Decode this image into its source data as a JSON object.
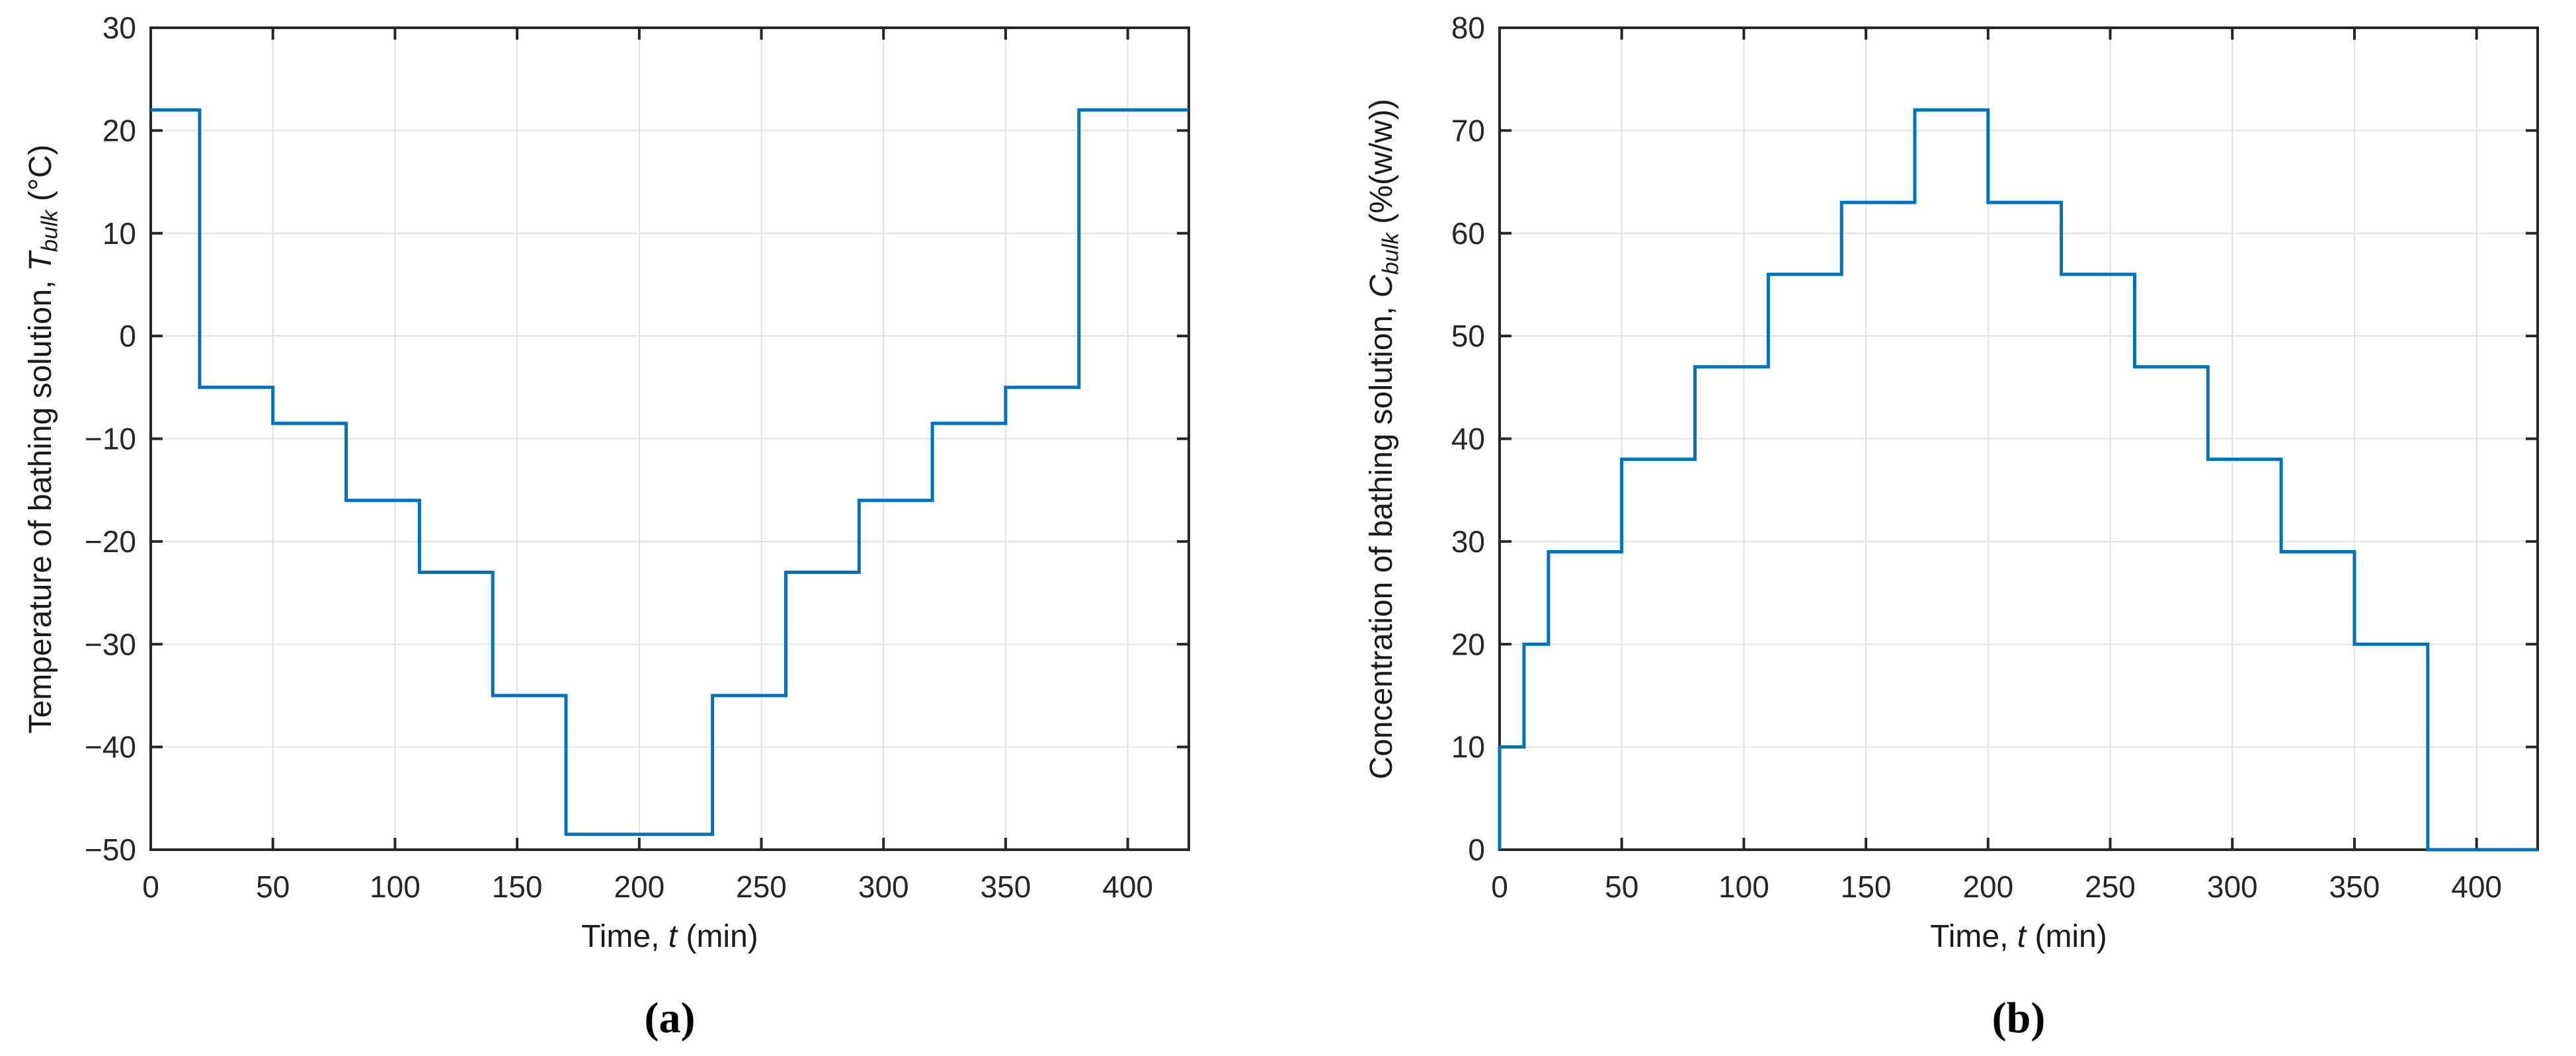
{
  "figure": {
    "background": "#ffffff",
    "axis_color": "#262626",
    "grid_color": "#e0e0e0",
    "tick_label_color": "#262626",
    "accent_blue": "#0072BD"
  },
  "chart_data": [
    {
      "panel": "a",
      "type": "line",
      "line_style": "step",
      "caption": "(a)",
      "xlabel": {
        "prefix": "Time, ",
        "symbol": "t",
        "suffix": " (min)"
      },
      "ylabel": {
        "prefix": "Temperature of bathing solution,  ",
        "symbol": "T",
        "subscript": "bulk",
        "suffix": "  (°C)"
      },
      "xlim": [
        0,
        425
      ],
      "ylim": [
        -50,
        30
      ],
      "xticks": [
        0,
        50,
        100,
        150,
        200,
        250,
        300,
        350,
        400
      ],
      "yticks": [
        -50,
        -40,
        -30,
        -20,
        -10,
        0,
        10,
        20,
        30
      ],
      "grid": true,
      "legend": "none",
      "line_color": "#0072BD",
      "series": [
        {
          "name": "T_bulk",
          "start_value": 22,
          "t": [
            0,
            20,
            50,
            80,
            110,
            140,
            170,
            230,
            260,
            290,
            320,
            350,
            380
          ],
          "v": [
            22,
            -5,
            -8.5,
            -16,
            -23,
            -35,
            -48.5,
            -35,
            -23,
            -16,
            -8.5,
            -5,
            22
          ],
          "t_end": 425
        }
      ]
    },
    {
      "panel": "b",
      "type": "line",
      "line_style": "step",
      "caption": "(b)",
      "xlabel": {
        "prefix": "Time, ",
        "symbol": "t",
        "suffix": " (min)"
      },
      "ylabel": {
        "prefix": "Concentration of bathing solution,  ",
        "symbol": "C",
        "subscript": "bulk",
        "suffix": "  (%(w/w))"
      },
      "xlim": [
        0,
        425
      ],
      "ylim": [
        0,
        80
      ],
      "xticks": [
        0,
        50,
        100,
        150,
        200,
        250,
        300,
        350,
        400
      ],
      "yticks": [
        0,
        10,
        20,
        30,
        40,
        50,
        60,
        70,
        80
      ],
      "grid": true,
      "legend": "none",
      "line_color": "#0072BD",
      "series": [
        {
          "name": "C_bulk",
          "start_value": 0,
          "t": [
            0,
            10,
            20,
            50,
            80,
            110,
            140,
            170,
            200,
            230,
            260,
            290,
            320,
            350,
            380
          ],
          "v": [
            10,
            20,
            29,
            38,
            47,
            56,
            63,
            72,
            63,
            56,
            47,
            38,
            29,
            20,
            0
          ],
          "t_end": 425
        }
      ]
    }
  ]
}
